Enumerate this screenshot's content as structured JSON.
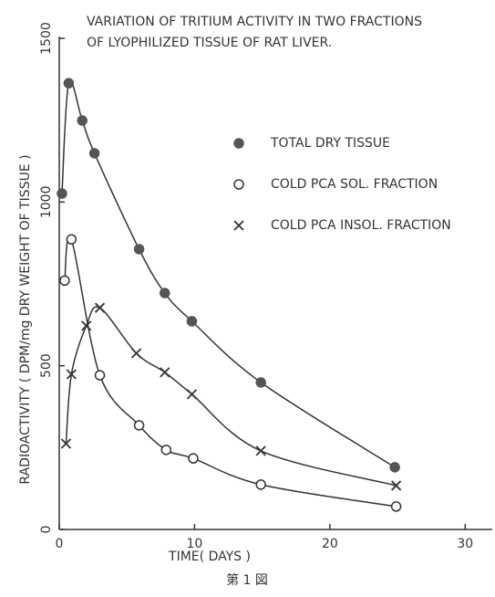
{
  "chart_data": {
    "type": "scatter",
    "title": [
      "VARIATION OF TRITIUM ACTIVITY IN TWO FRACTIONS",
      "OF LYOPHILIZED TISSUE OF RAT LIVER."
    ],
    "xlabel": "TIME( DAYS )",
    "ylabel": "RADIOACTIVITY ( DPM/mg DRY WEIGHT OF TISSUE )",
    "caption": "第 1 図",
    "xlim": [
      0,
      32
    ],
    "ylim": [
      0,
      1500
    ],
    "xticks": [
      0,
      10,
      20,
      30
    ],
    "yticks": [
      0,
      500,
      1000,
      1500
    ],
    "series": [
      {
        "name": "TOTAL DRY TISSUE",
        "marker": "filled-circle",
        "color": "#555555",
        "x": [
          0.2,
          0.7,
          1.7,
          2.6,
          5.9,
          7.8,
          9.8,
          14.9,
          24.8
        ],
        "values": [
          1026,
          1363,
          1249,
          1149,
          856,
          722,
          636,
          449,
          190
        ]
      },
      {
        "name": "COLD PCA SOL. FRACTION",
        "marker": "open-circle",
        "color": "#333333",
        "x": [
          0.4,
          0.9,
          3,
          5.9,
          7.9,
          9.9,
          14.9,
          24.9
        ],
        "values": [
          760,
          886,
          471,
          318,
          243,
          217,
          137,
          70
        ]
      },
      {
        "name": "COLD PCA INSOL. FRACTION",
        "marker": "cross",
        "color": "#333333",
        "x": [
          0.5,
          0.9,
          2,
          3,
          5.7,
          7.8,
          9.8,
          14.9,
          24.9
        ],
        "values": [
          262,
          474,
          622,
          677,
          538,
          480,
          413,
          240,
          134
        ]
      }
    ]
  }
}
